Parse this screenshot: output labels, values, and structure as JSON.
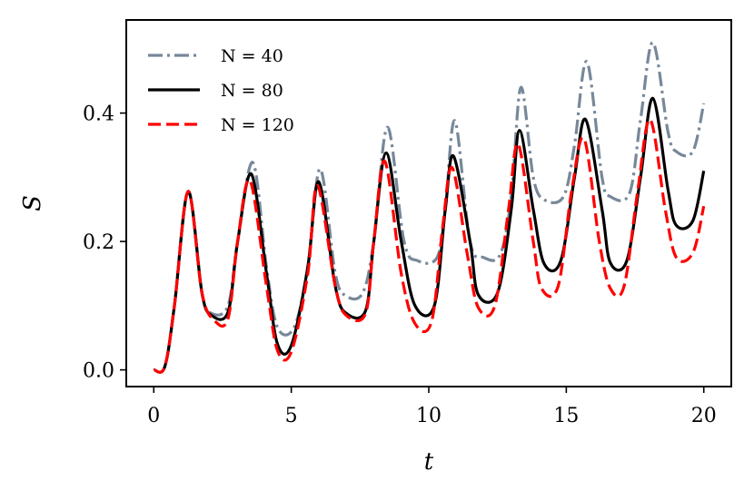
{
  "chart_data": {
    "type": "line",
    "xlabel": "t",
    "ylabel": "S",
    "xlim": [
      -1,
      21
    ],
    "ylim": [
      -0.026,
      0.545
    ],
    "xticks": [
      0,
      5,
      10,
      15,
      20
    ],
    "xtick_labels": [
      "0",
      "5",
      "10",
      "15",
      "20"
    ],
    "yticks": [
      0.0,
      0.2,
      0.4
    ],
    "ytick_labels": [
      "0.0",
      "0.2",
      "0.4"
    ],
    "grid": false,
    "legend_position": "top-left",
    "series": [
      {
        "name": "N = 40",
        "color": "#778899",
        "style": "dashdot",
        "points": [
          [
            0,
            0
          ],
          [
            0.4,
            0.005
          ],
          [
            0.75,
            0.1
          ],
          [
            1.25,
            0.278
          ],
          [
            1.75,
            0.12
          ],
          [
            2.1,
            0.088
          ],
          [
            2.7,
            0.1
          ],
          [
            3.05,
            0.2
          ],
          [
            3.6,
            0.323
          ],
          [
            4.1,
            0.16
          ],
          [
            4.5,
            0.066
          ],
          [
            5.1,
            0.066
          ],
          [
            5.6,
            0.16
          ],
          [
            6.05,
            0.313
          ],
          [
            6.6,
            0.15
          ],
          [
            7.0,
            0.115
          ],
          [
            7.6,
            0.12
          ],
          [
            8.0,
            0.2
          ],
          [
            8.5,
            0.378
          ],
          [
            9.1,
            0.2
          ],
          [
            9.6,
            0.17
          ],
          [
            10.3,
            0.175
          ],
          [
            10.6,
            0.25
          ],
          [
            10.95,
            0.388
          ],
          [
            11.5,
            0.2
          ],
          [
            12.0,
            0.175
          ],
          [
            12.6,
            0.18
          ],
          [
            13.0,
            0.27
          ],
          [
            13.35,
            0.44
          ],
          [
            13.8,
            0.3
          ],
          [
            14.2,
            0.265
          ],
          [
            14.9,
            0.27
          ],
          [
            15.3,
            0.35
          ],
          [
            15.75,
            0.48
          ],
          [
            16.3,
            0.3
          ],
          [
            16.6,
            0.27
          ],
          [
            17.3,
            0.275
          ],
          [
            17.7,
            0.39
          ],
          [
            18.15,
            0.51
          ],
          [
            18.7,
            0.37
          ],
          [
            19.0,
            0.34
          ],
          [
            19.6,
            0.34
          ],
          [
            20.0,
            0.415
          ]
        ]
      },
      {
        "name": "N = 80",
        "color": "#000000",
        "style": "solid",
        "points": [
          [
            0,
            0
          ],
          [
            0.4,
            0.005
          ],
          [
            0.75,
            0.1
          ],
          [
            1.25,
            0.278
          ],
          [
            1.75,
            0.12
          ],
          [
            2.1,
            0.085
          ],
          [
            2.7,
            0.09
          ],
          [
            3.05,
            0.2
          ],
          [
            3.55,
            0.305
          ],
          [
            4.1,
            0.15
          ],
          [
            4.5,
            0.04
          ],
          [
            5.0,
            0.038
          ],
          [
            5.6,
            0.16
          ],
          [
            6.0,
            0.293
          ],
          [
            6.6,
            0.13
          ],
          [
            7.0,
            0.088
          ],
          [
            7.7,
            0.092
          ],
          [
            8.0,
            0.2
          ],
          [
            8.45,
            0.338
          ],
          [
            9.0,
            0.2
          ],
          [
            9.5,
            0.1
          ],
          [
            10.2,
            0.1
          ],
          [
            10.6,
            0.25
          ],
          [
            10.9,
            0.333
          ],
          [
            11.5,
            0.2
          ],
          [
            11.8,
            0.117
          ],
          [
            12.5,
            0.12
          ],
          [
            13.0,
            0.25
          ],
          [
            13.3,
            0.373
          ],
          [
            13.8,
            0.25
          ],
          [
            14.2,
            0.165
          ],
          [
            14.8,
            0.17
          ],
          [
            15.3,
            0.3
          ],
          [
            15.7,
            0.39
          ],
          [
            16.3,
            0.25
          ],
          [
            16.6,
            0.167
          ],
          [
            17.2,
            0.17
          ],
          [
            17.7,
            0.3
          ],
          [
            18.15,
            0.423
          ],
          [
            18.7,
            0.28
          ],
          [
            19.0,
            0.225
          ],
          [
            19.6,
            0.232
          ],
          [
            20.0,
            0.31
          ]
        ]
      },
      {
        "name": "N = 120",
        "color": "#ff0000",
        "style": "dashed",
        "points": [
          [
            0,
            0
          ],
          [
            0.4,
            0.005
          ],
          [
            0.75,
            0.1
          ],
          [
            1.25,
            0.278
          ],
          [
            1.75,
            0.12
          ],
          [
            2.2,
            0.077
          ],
          [
            2.7,
            0.08
          ],
          [
            3.05,
            0.2
          ],
          [
            3.5,
            0.295
          ],
          [
            4.1,
            0.13
          ],
          [
            4.5,
            0.03
          ],
          [
            5.0,
            0.028
          ],
          [
            5.6,
            0.15
          ],
          [
            5.95,
            0.287
          ],
          [
            6.6,
            0.13
          ],
          [
            7.0,
            0.085
          ],
          [
            7.7,
            0.088
          ],
          [
            8.0,
            0.2
          ],
          [
            8.4,
            0.325
          ],
          [
            9.0,
            0.15
          ],
          [
            9.5,
            0.072
          ],
          [
            10.1,
            0.075
          ],
          [
            10.5,
            0.22
          ],
          [
            10.85,
            0.315
          ],
          [
            11.4,
            0.18
          ],
          [
            11.8,
            0.097
          ],
          [
            12.4,
            0.1
          ],
          [
            12.9,
            0.25
          ],
          [
            13.25,
            0.352
          ],
          [
            13.8,
            0.2
          ],
          [
            14.1,
            0.127
          ],
          [
            14.7,
            0.13
          ],
          [
            15.2,
            0.28
          ],
          [
            15.65,
            0.36
          ],
          [
            16.2,
            0.2
          ],
          [
            16.6,
            0.127
          ],
          [
            17.1,
            0.13
          ],
          [
            17.6,
            0.28
          ],
          [
            18.05,
            0.39
          ],
          [
            18.6,
            0.25
          ],
          [
            19.0,
            0.175
          ],
          [
            19.6,
            0.182
          ],
          [
            20.0,
            0.255
          ]
        ]
      }
    ]
  }
}
